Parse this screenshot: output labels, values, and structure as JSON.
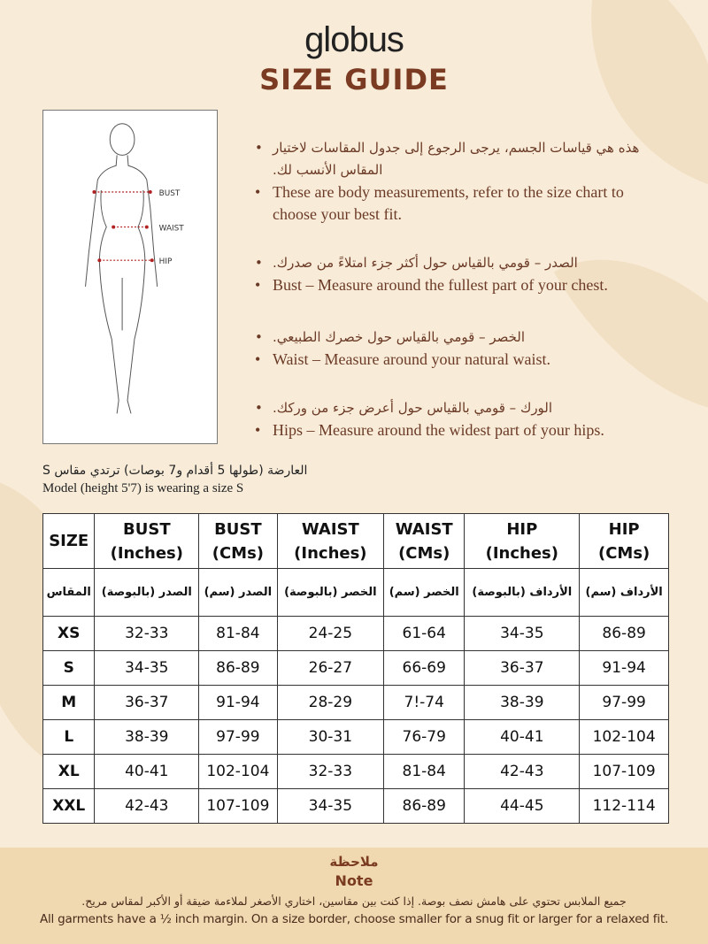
{
  "brand": "globus",
  "title": "SIZE GUIDE",
  "figure": {
    "labels": [
      "BUST",
      "WAIST",
      "HIP"
    ]
  },
  "instructions": [
    {
      "ar": "هذه هي قياسات الجسم، يرجى الرجوع إلى جدول المقاسات لاختيار المقاس الأنسب لك.",
      "en": "These are body measurements, refer to the size chart to choose your best fit."
    },
    {
      "ar": "الصدر – قومي بالقياس حول أكثر جزء امتلاءً من صدرك.",
      "en": "Bust – Measure around the fullest part of your chest."
    },
    {
      "ar": "الخصر – قومي بالقياس حول خصرك الطبيعي.",
      "en": "Waist – Measure around your natural waist."
    },
    {
      "ar": "الورك – قومي بالقياس حول أعرض جزء من وركك.",
      "en": "Hips – Measure around the widest part of your hips."
    }
  ],
  "model": {
    "ar": "العارضة (طولها 5 أقدام و7 بوصات) ترتدي مقاس S",
    "en": "Model (height 5'7) is wearing a size S"
  },
  "table": {
    "headers": [
      [
        "SIZE",
        ""
      ],
      [
        "BUST",
        "(Inches)"
      ],
      [
        "BUST",
        "(CMs)"
      ],
      [
        "WAIST",
        "(Inches)"
      ],
      [
        "WAIST",
        "(CMs)"
      ],
      [
        "HIP",
        "(Inches)"
      ],
      [
        "HIP",
        "(CMs)"
      ]
    ],
    "headers_ar": [
      "المقاس",
      "الصدر (بالبوصة)",
      "الصدر (سم)",
      "الخصر (بالبوصة)",
      "الخصر (سم)",
      "الأرداف (بالبوصة)",
      "الأرداف (سم)"
    ],
    "rows": [
      [
        "XS",
        "32-33",
        "81-84",
        "24-25",
        "61-64",
        "34-35",
        "86-89"
      ],
      [
        "S",
        "34-35",
        "86-89",
        "26-27",
        "66-69",
        "36-37",
        "91-94"
      ],
      [
        "M",
        "36-37",
        "91-94",
        "28-29",
        "7!-74",
        "38-39",
        "97-99"
      ],
      [
        "L",
        "38-39",
        "97-99",
        "30-31",
        "76-79",
        "40-41",
        "102-104"
      ],
      [
        "XL",
        "40-41",
        "102-104",
        "32-33",
        "81-84",
        "42-43",
        "107-109"
      ],
      [
        "XXL",
        "42-43",
        "107-109",
        "34-35",
        "86-89",
        "44-45",
        "112-114"
      ]
    ]
  },
  "note": {
    "title_ar": "ملاحظة",
    "title_en": "Note",
    "text_ar": "جميع الملابس تحتوي على هامش نصف بوصة. إذا كنت بين مقاسين، اختاري الأصغر لملاءمة ضيقة أو الأكبر لمقاس مريح.",
    "text_en": "All garments have a ½ inch margin. On a size border, choose smaller for a snug fit or larger for a relaxed fit."
  },
  "colors": {
    "title": "#7a3b22",
    "background": "#f8ecd9",
    "note_bg": "#f0d9b0",
    "marker": "#b22222"
  }
}
